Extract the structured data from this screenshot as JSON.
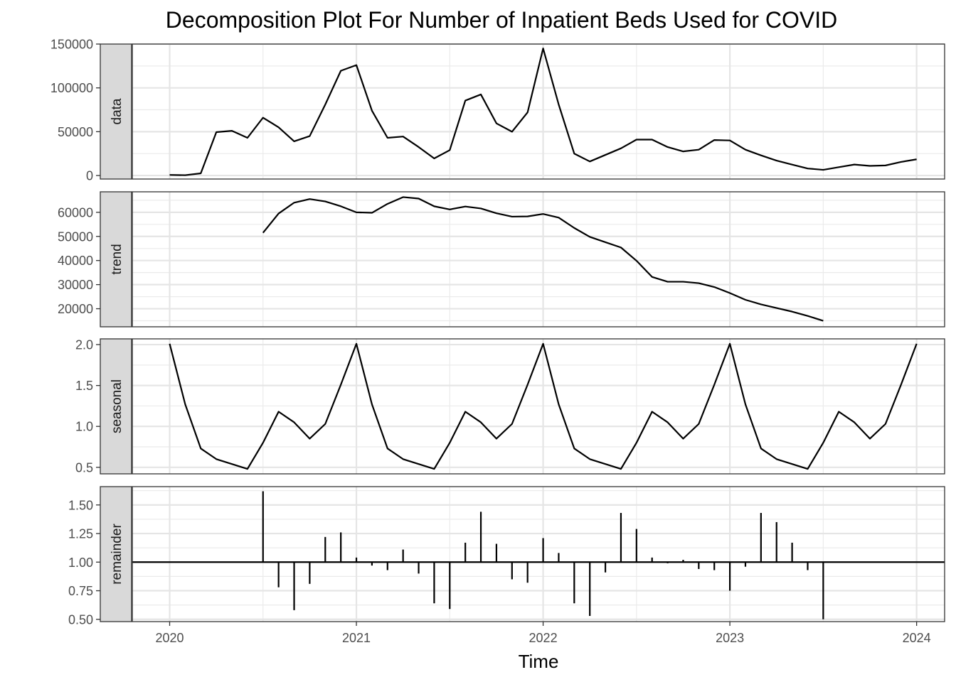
{
  "chart_data": {
    "type": "line",
    "title": "Decomposition Plot For Number of Inpatient Beds Used for COVID",
    "xlabel": "Time",
    "xlim": [
      2019.8,
      2024.15
    ],
    "x_ticks": [
      "2020",
      "2021",
      "2022",
      "2023",
      "2024"
    ],
    "x_tick_values": [
      2020,
      2021,
      2022,
      2023,
      2024
    ],
    "grid": true,
    "panels": [
      {
        "name": "data",
        "strip_label": "data",
        "style": "line",
        "ylim": [
          -4000,
          150000
        ],
        "y_ticks": [
          "0",
          "50000",
          "100000",
          "150000"
        ],
        "y_tick_values": [
          0,
          50000,
          100000,
          150000
        ],
        "start": 2020.0,
        "values": [
          700,
          400,
          2500,
          49500,
          51000,
          43000,
          66000,
          55000,
          39000,
          45000,
          81000,
          119500,
          126000,
          74000,
          43000,
          44500,
          32500,
          19500,
          29000,
          85500,
          92500,
          59500,
          50000,
          72000,
          145000,
          81000,
          25000,
          16000,
          23500,
          31000,
          41000,
          41000,
          32500,
          27500,
          29500,
          40500,
          40000,
          29500,
          23000,
          17000,
          12500,
          8000,
          6500,
          9500,
          12500,
          11000,
          11500,
          15500,
          18500
        ]
      },
      {
        "name": "trend",
        "strip_label": "trend",
        "style": "line",
        "ylim": [
          12500,
          68500
        ],
        "y_ticks": [
          "20000",
          "30000",
          "40000",
          "50000",
          "60000"
        ],
        "y_tick_values": [
          20000,
          30000,
          40000,
          50000,
          60000
        ],
        "start": 2020.5,
        "values": [
          51500,
          59500,
          64000,
          65500,
          64500,
          62500,
          60000,
          59800,
          63500,
          66300,
          65700,
          62500,
          61200,
          62400,
          61600,
          59600,
          58200,
          58300,
          59300,
          57800,
          53500,
          49800,
          47600,
          45400,
          39900,
          33200,
          31200,
          31200,
          30600,
          29000,
          26500,
          23700,
          21800,
          20300,
          18800,
          17000,
          15000
        ]
      },
      {
        "name": "seasonal",
        "strip_label": "seasonal",
        "style": "line",
        "ylim": [
          0.42,
          2.07
        ],
        "y_ticks": [
          "0.5",
          "1.0",
          "1.5",
          "2.0"
        ],
        "y_tick_values": [
          0.5,
          1.0,
          1.5,
          2.0
        ],
        "start": 2020.0,
        "pattern": [
          2.01,
          1.27,
          0.73,
          0.6,
          0.54,
          0.48,
          0.8,
          1.18,
          1.05,
          0.85,
          1.03,
          1.51
        ],
        "values": [
          2.01,
          1.27,
          0.73,
          0.6,
          0.54,
          0.48,
          0.8,
          1.18,
          1.05,
          0.85,
          1.03,
          1.51,
          2.01,
          1.27,
          0.73,
          0.6,
          0.54,
          0.48,
          0.8,
          1.18,
          1.05,
          0.85,
          1.03,
          1.51,
          2.01,
          1.27,
          0.73,
          0.6,
          0.54,
          0.48,
          0.8,
          1.18,
          1.05,
          0.85,
          1.03,
          1.51,
          2.01,
          1.27,
          0.73,
          0.6,
          0.54,
          0.48,
          0.8,
          1.18,
          1.05,
          0.85,
          1.03,
          1.51,
          2.01
        ]
      },
      {
        "name": "remainder",
        "strip_label": "remainder",
        "style": "bar",
        "baseline": 1.0,
        "ylim": [
          0.48,
          1.66
        ],
        "y_ticks": [
          "0.50",
          "0.75",
          "1.00",
          "1.25",
          "1.50"
        ],
        "y_tick_values": [
          0.5,
          0.75,
          1.0,
          1.25,
          1.5
        ],
        "start": 2020.5,
        "values": [
          1.62,
          0.78,
          0.58,
          0.81,
          1.22,
          1.26,
          1.04,
          0.97,
          0.93,
          1.11,
          0.9,
          0.64,
          0.59,
          1.17,
          1.44,
          1.16,
          0.85,
          0.82,
          1.21,
          1.08,
          0.64,
          0.53,
          0.91,
          1.43,
          1.29,
          1.04,
          0.99,
          1.02,
          0.94,
          0.93,
          0.75,
          0.96,
          1.43,
          1.35,
          1.17,
          0.93,
          0.5
        ]
      }
    ]
  }
}
